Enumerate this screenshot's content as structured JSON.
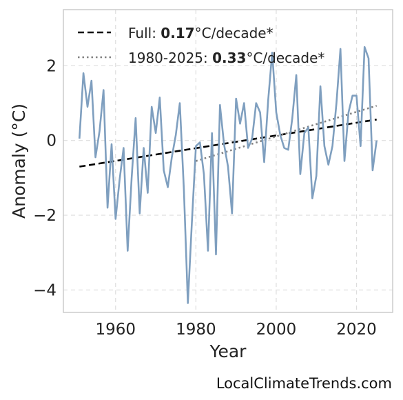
{
  "chart_data": {
    "type": "line",
    "xlabel": "Year",
    "ylabel": "Anomaly (°C)",
    "xlim": [
      1947,
      2029
    ],
    "ylim": [
      -4.6,
      3.5
    ],
    "xticks": [
      1960,
      1980,
      2000,
      2020
    ],
    "yticks": [
      -4,
      -2,
      0,
      2
    ],
    "grid": true,
    "legend_position": "top-left",
    "colors": {
      "series": "#7f9fbf",
      "full_trend": "#000000",
      "recent_trend": "#808080"
    },
    "series": [
      {
        "x": [
          1951,
          1952,
          1953,
          1954,
          1955,
          1956,
          1957,
          1958,
          1959,
          1960,
          1961,
          1962,
          1963,
          1964,
          1965,
          1966,
          1967,
          1968,
          1969,
          1970,
          1971,
          1972,
          1973,
          1974,
          1975,
          1976,
          1977,
          1978,
          1979,
          1980,
          1981,
          1982,
          1983,
          1984,
          1985,
          1986,
          1987,
          1988,
          1989,
          1990,
          1991,
          1992,
          1993,
          1994,
          1995,
          1996,
          1997,
          1998,
          1999,
          2000,
          2001,
          2002,
          2003,
          2004,
          2005,
          2006,
          2007,
          2008,
          2009,
          2010,
          2011,
          2012,
          2013,
          2014,
          2015,
          2016,
          2017,
          2018,
          2019,
          2020,
          2021,
          2022,
          2023,
          2024,
          2025
        ],
        "values": [
          0.05,
          1.8,
          0.9,
          1.6,
          -0.45,
          0.25,
          1.35,
          -1.8,
          -0.1,
          -2.1,
          -1.05,
          -0.2,
          -2.95,
          -1.0,
          0.6,
          -1.95,
          -0.2,
          -1.4,
          0.9,
          0.2,
          1.15,
          -0.8,
          -1.25,
          -0.45,
          0.15,
          1.0,
          -1.3,
          -4.35,
          -2.2,
          -0.15,
          -0.05,
          -0.9,
          -2.95,
          0.2,
          -3.05,
          0.95,
          -0.1,
          -0.7,
          -1.95,
          1.12,
          0.45,
          1.0,
          -0.2,
          0.05,
          1.0,
          0.75,
          -0.58,
          1.08,
          2.35,
          0.75,
          0.15,
          -0.2,
          -0.25,
          0.6,
          1.75,
          -0.9,
          0.2,
          0.35,
          -1.55,
          -0.95,
          1.45,
          -0.15,
          -0.65,
          -0.15,
          1.0,
          2.45,
          -0.55,
          0.75,
          1.2,
          1.2,
          -0.15,
          2.5,
          2.2,
          -0.8,
          0.0
        ]
      }
    ],
    "trends": [
      {
        "label_prefix": "Full: ",
        "rate": "0.17",
        "label_suffix": "°C/decade*",
        "style": "dashed",
        "x": [
          1951,
          2025
        ],
        "y": [
          -0.7,
          0.56
        ]
      },
      {
        "label_prefix": "1980-2025: ",
        "rate": "0.33",
        "label_suffix": "°C/decade*",
        "style": "dotted",
        "x": [
          1980,
          2025
        ],
        "y": [
          -0.55,
          0.93
        ]
      }
    ]
  },
  "credit": "LocalClimateTrends.com"
}
